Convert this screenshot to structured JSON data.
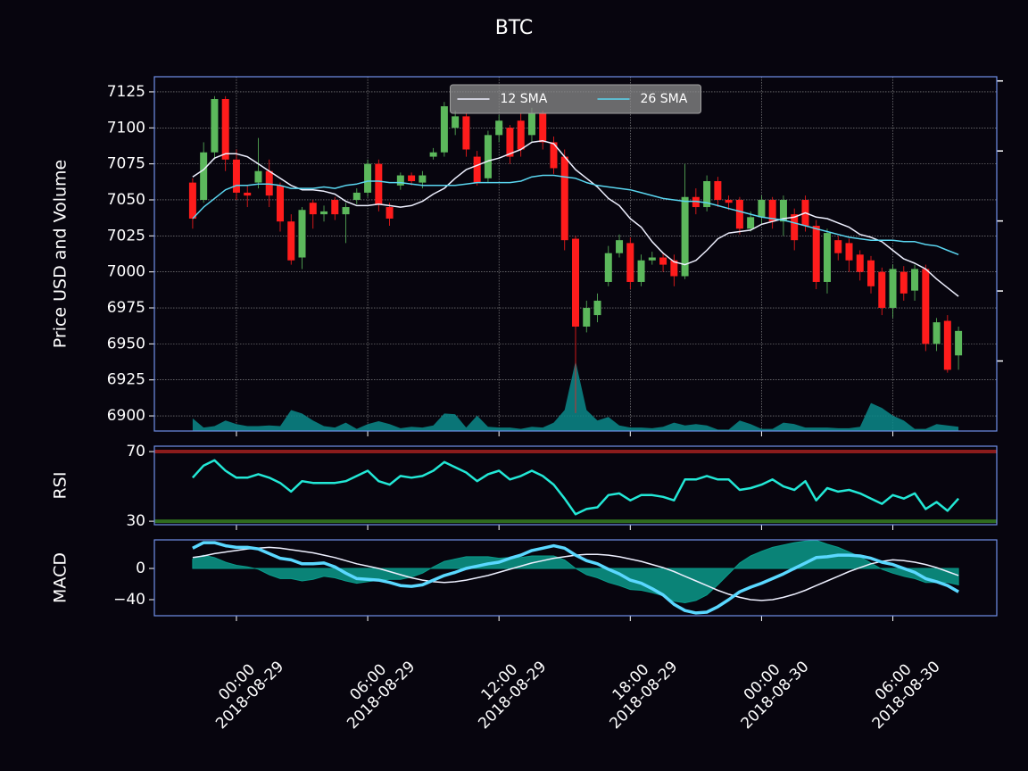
{
  "chart_data": [
    {
      "type": "candlestick",
      "title": "BTC",
      "ylabel": "Price USD and Volume",
      "x": [
        "2018-08-28 22:00",
        "2018-08-28 22:30",
        "2018-08-28 23:00",
        "2018-08-28 23:30",
        "2018-08-29 00:00",
        "2018-08-29 00:30",
        "2018-08-29 01:00",
        "2018-08-29 01:30",
        "2018-08-29 02:00",
        "2018-08-29 02:30",
        "2018-08-29 03:00",
        "2018-08-29 03:30",
        "2018-08-29 04:00",
        "2018-08-29 04:30",
        "2018-08-29 05:00",
        "2018-08-29 05:30",
        "2018-08-29 06:00",
        "2018-08-29 06:30",
        "2018-08-29 07:00",
        "2018-08-29 07:30",
        "2018-08-29 08:00",
        "2018-08-29 08:30",
        "2018-08-29 09:00",
        "2018-08-29 09:30",
        "2018-08-29 10:00",
        "2018-08-29 10:30",
        "2018-08-29 11:00",
        "2018-08-29 11:30",
        "2018-08-29 12:00",
        "2018-08-29 12:30",
        "2018-08-29 13:00",
        "2018-08-29 13:30",
        "2018-08-29 14:00",
        "2018-08-29 14:30",
        "2018-08-29 15:00",
        "2018-08-29 15:30",
        "2018-08-29 16:00",
        "2018-08-29 16:30",
        "2018-08-29 17:00",
        "2018-08-29 17:30",
        "2018-08-29 18:00",
        "2018-08-29 18:30",
        "2018-08-29 19:00",
        "2018-08-29 19:30",
        "2018-08-29 20:00",
        "2018-08-29 20:30",
        "2018-08-29 21:00",
        "2018-08-29 21:30",
        "2018-08-29 22:00",
        "2018-08-29 22:30",
        "2018-08-29 23:00",
        "2018-08-29 23:30",
        "2018-08-30 00:00",
        "2018-08-30 00:30",
        "2018-08-30 01:00",
        "2018-08-30 01:30",
        "2018-08-30 02:00",
        "2018-08-30 02:30",
        "2018-08-30 03:00",
        "2018-08-30 03:30",
        "2018-08-30 04:00",
        "2018-08-30 04:30",
        "2018-08-30 05:00",
        "2018-08-30 05:30",
        "2018-08-30 06:00",
        "2018-08-30 06:30",
        "2018-08-30 07:00",
        "2018-08-30 07:30",
        "2018-08-30 08:00",
        "2018-08-30 08:30",
        "2018-08-30 09:00"
      ],
      "open": [
        7062,
        7050,
        7083,
        7120,
        7078,
        7055,
        7062,
        7070,
        7060,
        7035,
        7010,
        7048,
        7040,
        7050,
        7040,
        7050,
        7055,
        7075,
        7045,
        7060,
        7067,
        7062,
        7080,
        7083,
        7100,
        7108,
        7080,
        7065,
        7095,
        7100,
        7105,
        7095,
        7110,
        7090,
        7080,
        7023,
        6962,
        6970,
        6993,
        7013,
        7020,
        6993,
        7008,
        7010,
        7008,
        6997,
        7052,
        7045,
        7063,
        7050,
        7050,
        7030,
        7038,
        7050,
        7035,
        7040,
        7050,
        7032,
        6993,
        7022,
        7020,
        7012,
        7008,
        7000,
        6975,
        7000,
        6987,
        7002,
        6950,
        6966,
        6942
      ],
      "high": [
        7065,
        7090,
        7122,
        7122,
        7085,
        7060,
        7093,
        7078,
        7062,
        7040,
        7045,
        7050,
        7046,
        7052,
        7048,
        7058,
        7078,
        7078,
        7048,
        7069,
        7069,
        7070,
        7086,
        7118,
        7112,
        7110,
        7084,
        7098,
        7109,
        7102,
        7110,
        7114,
        7112,
        7094,
        7085,
        7025,
        6980,
        6985,
        7018,
        7026,
        7024,
        7012,
        7014,
        7013,
        7012,
        7075,
        7058,
        7067,
        7066,
        7053,
        7052,
        7042,
        7053,
        7052,
        7053,
        7044,
        7053,
        7036,
        7030,
        7025,
        7023,
        7015,
        7011,
        7003,
        7005,
        7004,
        7005,
        7005,
        6968,
        6970,
        6962
      ],
      "low": [
        7030,
        7048,
        7078,
        7070,
        7050,
        7045,
        7058,
        7045,
        7028,
        7005,
        7002,
        7030,
        7035,
        7036,
        7020,
        7047,
        7052,
        7042,
        7032,
        7057,
        7060,
        7058,
        7078,
        7080,
        7095,
        7080,
        7060,
        7062,
        7090,
        7075,
        7080,
        7090,
        7085,
        7068,
        7015,
        6902,
        6958,
        6965,
        6990,
        7010,
        6988,
        6990,
        7005,
        7000,
        6990,
        6995,
        7040,
        7042,
        7045,
        7043,
        7026,
        7028,
        7033,
        7030,
        7025,
        7015,
        7028,
        6988,
        6985,
        7008,
        7000,
        6994,
        6985,
        6970,
        6968,
        6980,
        6980,
        6945,
        6945,
        6930,
        6932
      ],
      "close": [
        7037,
        7083,
        7120,
        7078,
        7055,
        7053,
        7070,
        7053,
        7035,
        7008,
        7043,
        7040,
        7042,
        7040,
        7045,
        7055,
        7075,
        7047,
        7037,
        7067,
        7063,
        7067,
        7083,
        7115,
        7108,
        7085,
        7062,
        7095,
        7105,
        7080,
        7085,
        7110,
        7090,
        7072,
        7022,
        6962,
        6975,
        6980,
        7013,
        7022,
        6993,
        7008,
        7010,
        7005,
        6997,
        7052,
        7045,
        7063,
        7050,
        7048,
        7030,
        7038,
        7050,
        7035,
        7050,
        7022,
        7032,
        6993,
        7027,
        7013,
        7008,
        7000,
        6990,
        6975,
        7002,
        6985,
        7002,
        6950,
        6965,
        6932,
        6959
      ],
      "up_color": "#5cb85c",
      "down_color": "#ff1c1c",
      "series": [
        {
          "name": "12 SMA",
          "color": "#eef0ff",
          "values": [
            7066,
            7071,
            7079,
            7082,
            7082,
            7080,
            7075,
            7070,
            7065,
            7060,
            7057,
            7057,
            7056,
            7054,
            7049,
            7046,
            7046,
            7047,
            7046,
            7045,
            7046,
            7049,
            7054,
            7058,
            7065,
            7071,
            7074,
            7077,
            7079,
            7082,
            7085,
            7090,
            7091,
            7089,
            7080,
            7071,
            7065,
            7059,
            7051,
            7046,
            7037,
            7031,
            7021,
            7013,
            7007,
            7005,
            7008,
            7015,
            7023,
            7027,
            7028,
            7029,
            7033,
            7035,
            7037,
            7038,
            7041,
            7038,
            7037,
            7034,
            7031,
            7026,
            7024,
            7021,
            7015,
            7009,
            7006,
            7002,
            6995,
            6989,
            6983
          ]
        },
        {
          "name": "26 SMA",
          "color": "#5ad6f0",
          "values": [
            7037,
            7045,
            7051,
            7057,
            7060,
            7060,
            7061,
            7061,
            7060,
            7058,
            7058,
            7058,
            7059,
            7058,
            7060,
            7061,
            7063,
            7063,
            7062,
            7062,
            7061,
            7060,
            7060,
            7060,
            7060,
            7061,
            7062,
            7062,
            7062,
            7062,
            7063,
            7066,
            7067,
            7067,
            7066,
            7065,
            7062,
            7060,
            7059,
            7058,
            7057,
            7055,
            7053,
            7051,
            7050,
            7049,
            7049,
            7048,
            7046,
            7044,
            7042,
            7040,
            7038,
            7037,
            7036,
            7034,
            7032,
            7030,
            7028,
            7026,
            7024,
            7023,
            7022,
            7022,
            7022,
            7021,
            7021,
            7019,
            7018,
            7015,
            7012
          ]
        }
      ],
      "volume": {
        "color": "#0a8a8a",
        "axis": "y2",
        "values": [
          0.18,
          0.05,
          0.07,
          0.15,
          0.1,
          0.07,
          0.07,
          0.08,
          0.07,
          0.3,
          0.25,
          0.15,
          0.07,
          0.05,
          0.12,
          0.03,
          0.1,
          0.14,
          0.1,
          0.04,
          0.06,
          0.05,
          0.08,
          0.25,
          0.24,
          0.05,
          0.22,
          0.06,
          0.05,
          0.05,
          0.03,
          0.06,
          0.05,
          0.12,
          0.3,
          1.0,
          0.3,
          0.15,
          0.2,
          0.08,
          0.05,
          0.05,
          0.04,
          0.06,
          0.12,
          0.08,
          0.1,
          0.08,
          0.02,
          0.02,
          0.15,
          0.1,
          0.03,
          0.03,
          0.12,
          0.1,
          0.05,
          0.05,
          0.05,
          0.04,
          0.04,
          0.06,
          0.4,
          0.33,
          0.22,
          0.15,
          0.03,
          0.03,
          0.1,
          0.08,
          0.06
        ]
      },
      "xlim": [
        "2018-08-28 20:15",
        "2018-08-30 10:45"
      ],
      "xticks": [
        {
          "value": "2018-08-29 00:00",
          "label": [
            "00:00",
            "2018-08-29"
          ]
        },
        {
          "value": "2018-08-29 06:00",
          "label": [
            "06:00",
            "2018-08-29"
          ]
        },
        {
          "value": "2018-08-29 12:00",
          "label": [
            "12:00",
            "2018-08-29"
          ]
        },
        {
          "value": "2018-08-29 18:00",
          "label": [
            "18:00",
            "2018-08-29"
          ]
        },
        {
          "value": "2018-08-30 00:00",
          "label": [
            "00:00",
            "2018-08-30"
          ]
        },
        {
          "value": "2018-08-30 06:00",
          "label": [
            "06:00",
            "2018-08-30"
          ]
        }
      ],
      "ylim": [
        6889.5,
        7135.5
      ],
      "yticks": [
        6900,
        6925,
        6950,
        6975,
        7000,
        7025,
        7050,
        7075,
        7100,
        7125
      ],
      "y2lim": [
        0,
        5.06
      ],
      "y2ticks": [
        1,
        2,
        3,
        4,
        5
      ],
      "grid": true,
      "legend": "upper center"
    },
    {
      "type": "line",
      "ylabel": "RSI",
      "ylim": [
        28,
        73.1
      ],
      "yticks": [
        30,
        70
      ],
      "hlines": [
        {
          "value": 70,
          "color": "#8b1c1c"
        },
        {
          "value": 30,
          "color": "#2f6b1f"
        }
      ],
      "series": [
        {
          "color": "#22e8d6",
          "linewidth": 2.5,
          "values": [
            55,
            62,
            65,
            59,
            55,
            55,
            57,
            55,
            52,
            47,
            53,
            52,
            52,
            52,
            53,
            56,
            59,
            53,
            51,
            56,
            55,
            56,
            59,
            64,
            61,
            58,
            53,
            57,
            59,
            54,
            56,
            59,
            56,
            51,
            43,
            34,
            37,
            38,
            45,
            46,
            42,
            45,
            45,
            44,
            42,
            54,
            54,
            56,
            54,
            54,
            48,
            49,
            51,
            54,
            50,
            48,
            53,
            42,
            49,
            47,
            48,
            46,
            43,
            40,
            45,
            43,
            46,
            37,
            41,
            36,
            43
          ]
        }
      ]
    },
    {
      "type": "line",
      "ylabel": "MACD",
      "ylim": [
        -60.6,
        36.6
      ],
      "yticks": [
        {
          "value": -40,
          "label": "−40"
        },
        0
      ],
      "series": [
        {
          "color": "#0a9a8a",
          "fill": "area",
          "values": [
            12,
            17,
            14,
            8,
            4,
            2,
            -1,
            -8,
            -13,
            -13,
            -16,
            -14,
            -10,
            -12,
            -16,
            -19,
            -17,
            -15,
            -14,
            -14,
            -11,
            -6,
            2,
            9,
            12,
            15,
            15,
            15,
            13,
            14,
            14,
            16,
            16,
            16,
            11,
            0,
            -8,
            -12,
            -18,
            -22,
            -27,
            -28,
            -31,
            -35,
            -42,
            -44,
            -41,
            -34,
            -21,
            -7,
            7,
            16,
            22,
            27,
            30,
            33,
            35,
            36,
            31,
            27,
            21,
            15,
            7,
            -1,
            -6,
            -10,
            -13,
            -18,
            -18,
            -18,
            -21
          ]
        },
        {
          "color": "#eef0ff",
          "linewidth": 1.5,
          "values": [
            14,
            16,
            19,
            21,
            23,
            25,
            26,
            27,
            26,
            24,
            22,
            20,
            17,
            14,
            10,
            6,
            3,
            0,
            -4,
            -8,
            -12,
            -15,
            -17,
            -18,
            -17,
            -15,
            -12,
            -9,
            -5,
            -1,
            3,
            7,
            10,
            13,
            15,
            17,
            18,
            18,
            17,
            15,
            12,
            9,
            5,
            1,
            -4,
            -10,
            -16,
            -22,
            -28,
            -33,
            -37,
            -40,
            -41,
            -40,
            -37,
            -33,
            -28,
            -22,
            -16,
            -10,
            -4,
            1,
            6,
            9,
            11,
            10,
            8,
            5,
            1,
            -4,
            -9
          ]
        },
        {
          "color": "#5ad8ff",
          "linewidth": 3.5,
          "values": [
            26,
            33,
            33,
            29,
            27,
            27,
            25,
            19,
            13,
            11,
            6,
            6,
            7,
            2,
            -6,
            -13,
            -14,
            -15,
            -18,
            -22,
            -23,
            -21,
            -15,
            -9,
            -5,
            0,
            3,
            6,
            8,
            13,
            17,
            23,
            26,
            29,
            26,
            17,
            10,
            6,
            -1,
            -7,
            -15,
            -19,
            -26,
            -34,
            -46,
            -54,
            -57,
            -56,
            -49,
            -40,
            -30,
            -24,
            -19,
            -13,
            -7,
            0,
            7,
            14,
            15,
            17,
            17,
            16,
            13,
            8,
            5,
            0,
            -5,
            -13,
            -17,
            -22,
            -30
          ]
        }
      ]
    }
  ]
}
